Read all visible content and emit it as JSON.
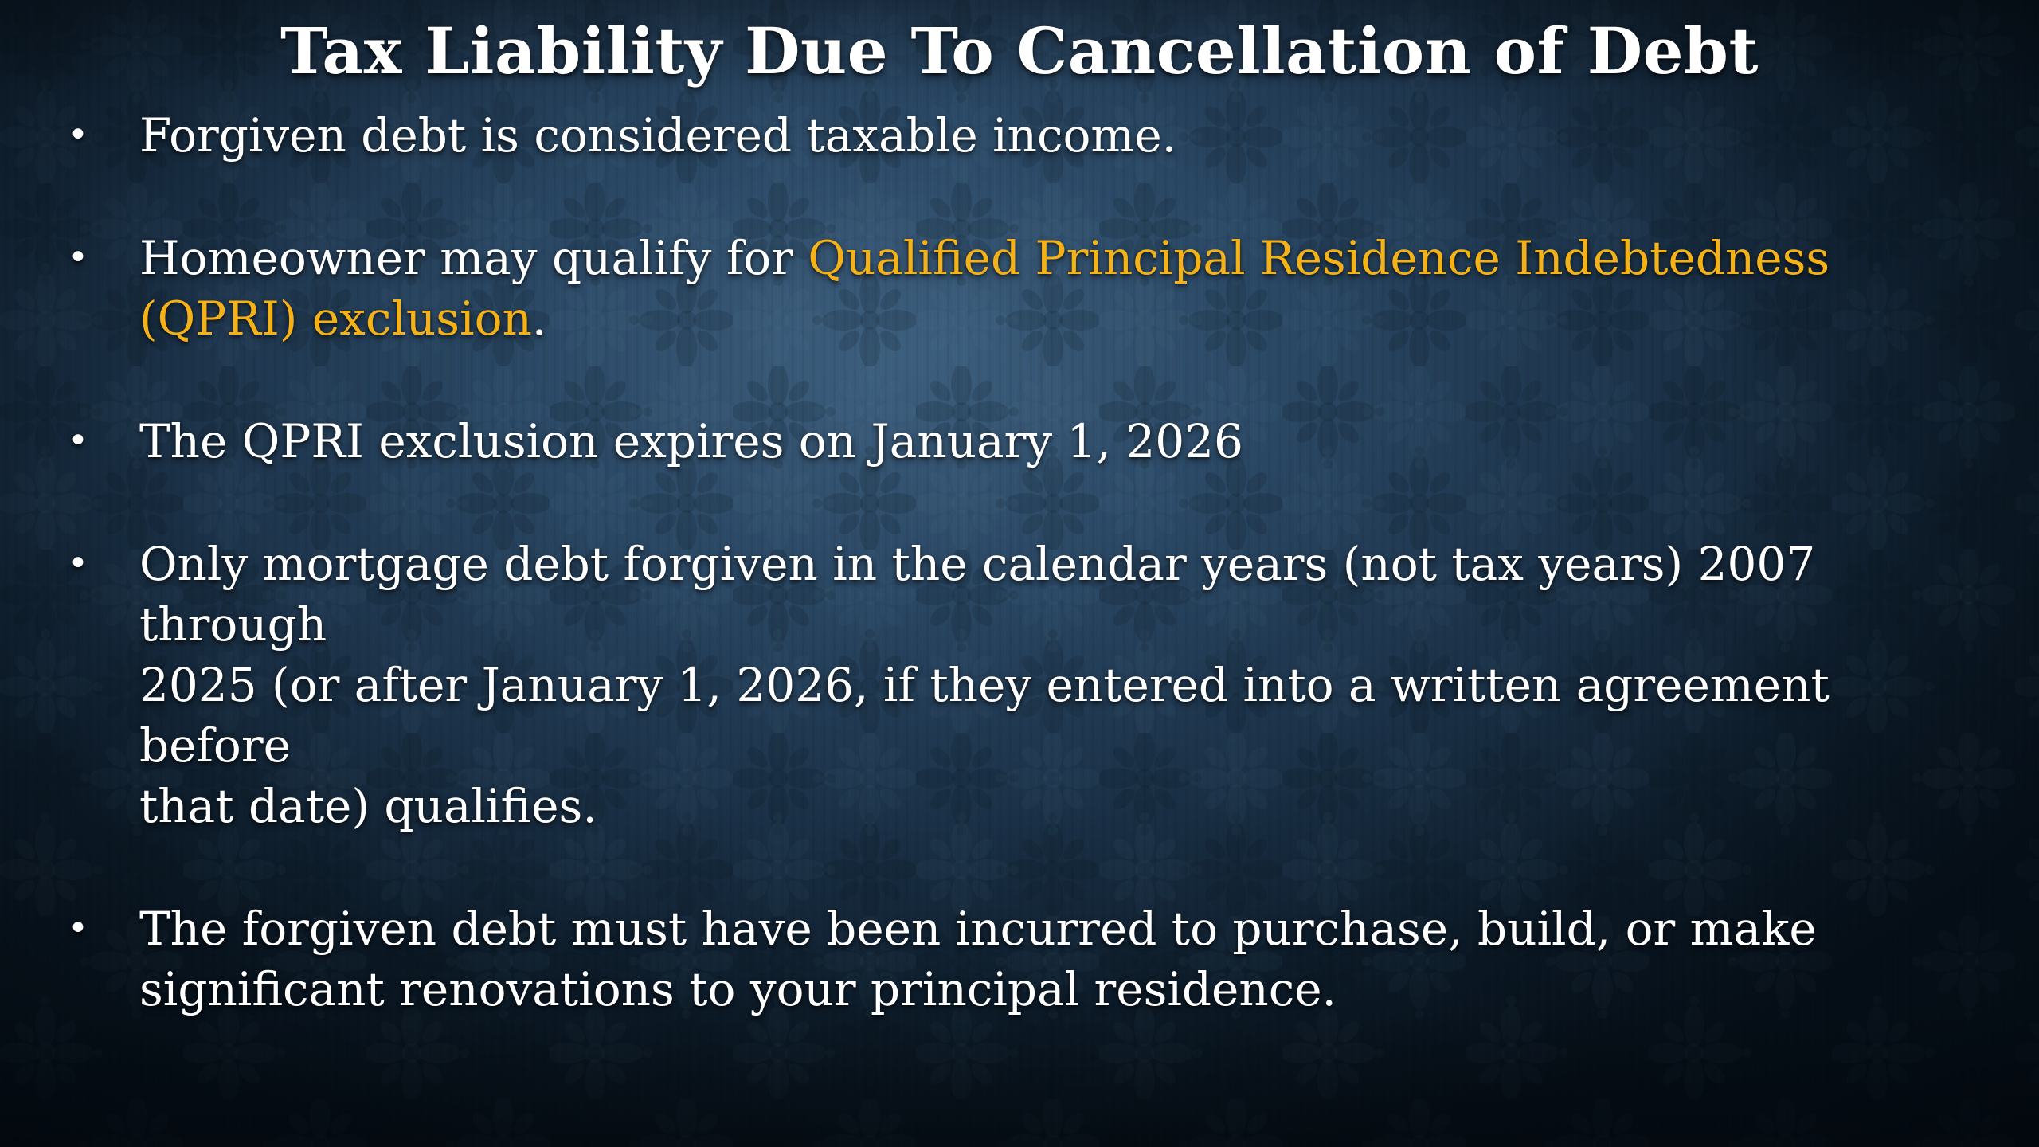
{
  "slide": {
    "title": "Tax Liability Due To Cancellation of Debt",
    "bullet_glyph": "•",
    "bullets": [
      {
        "segments": [
          {
            "text": "Forgiven debt is considered taxable income.",
            "style": "normal"
          }
        ]
      },
      {
        "segments": [
          {
            "text": "Homeowner may qualify for ",
            "style": "normal"
          },
          {
            "text": "Qualified Principal Residence Indebtedness\n(QPRI) exclusion",
            "style": "highlight"
          },
          {
            "text": ".",
            "style": "normal"
          }
        ]
      },
      {
        "segments": [
          {
            "text": "The QPRI exclusion expires on January 1, 2026",
            "style": "normal"
          }
        ]
      },
      {
        "segments": [
          {
            "text": "Only mortgage debt forgiven in the calendar years (not tax years) 2007 through\n2025 (or after January 1, 2026, if they entered into a written agreement before\nthat date) qualifies.",
            "style": "normal"
          }
        ]
      },
      {
        "segments": [
          {
            "text": "The forgiven debt must have been incurred to purchase, build, or make\nsignificant renovations to your principal residence.",
            "style": "normal"
          }
        ]
      }
    ]
  },
  "colors": {
    "text": "#ffffff",
    "highlight": "#f4b118",
    "background_base": "#0d1b29",
    "background_glow": "#406383"
  }
}
